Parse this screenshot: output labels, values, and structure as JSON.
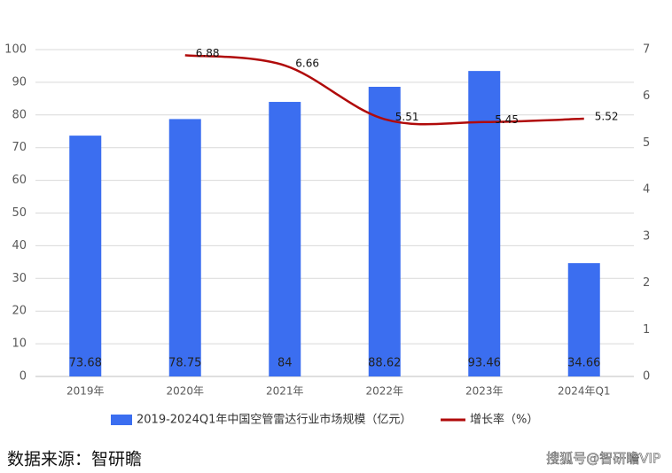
{
  "chart_data": {
    "type": "bar",
    "categories": [
      "2019年",
      "2020年",
      "2021年",
      "2022年",
      "2023年",
      "2024年Q1"
    ],
    "series": [
      {
        "name": "2019-2024Q1年中国空管雷达行业市场规模（亿元）",
        "type": "bar",
        "color": "#3b6ef0",
        "values": [
          73.68,
          78.75,
          84,
          88.62,
          93.46,
          34.66
        ]
      },
      {
        "name": "增长率（%）",
        "type": "line",
        "axis": "y2",
        "color": "#b00a0a",
        "values": [
          null,
          6.88,
          6.66,
          5.51,
          5.45,
          5.52
        ]
      }
    ],
    "ylim": [
      0,
      100
    ],
    "yticks": [
      0,
      10,
      20,
      30,
      40,
      50,
      60,
      70,
      80,
      90,
      100
    ],
    "y2lim": [
      0,
      7
    ],
    "y2ticks": [
      0,
      1,
      2,
      3,
      4,
      5,
      6,
      7
    ],
    "grid": true,
    "legend": "bottom"
  },
  "source": "数据来源：智研瞻",
  "watermark": "搜狐号@智研瞻VIP"
}
